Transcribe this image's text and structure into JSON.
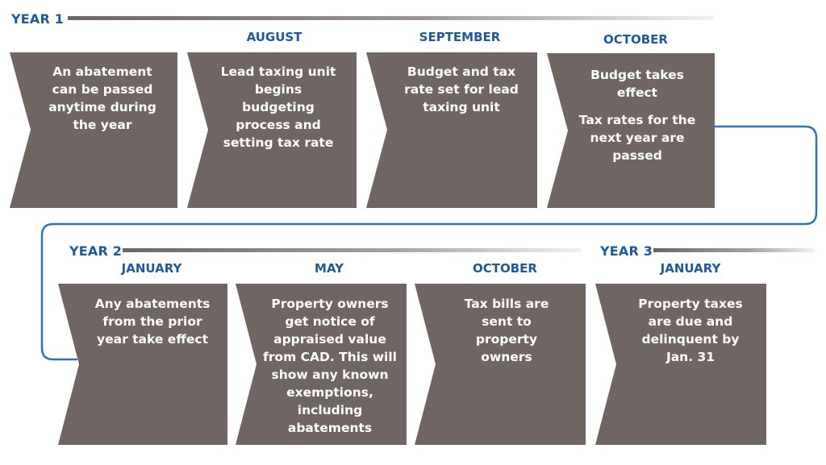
{
  "colors": {
    "blue": "#1f5a96",
    "box": "#6f6663",
    "connector": "#2f73b6",
    "line_dark": "#6f6663",
    "line_light": "#e4e2e1"
  },
  "years": {
    "year1": "YEAR 1",
    "year2": "YEAR 2",
    "year3": "YEAR 3"
  },
  "steps": [
    {
      "month": "",
      "text": [
        "An abatement can be passed anytime during the year"
      ]
    },
    {
      "month": "AUGUST",
      "text": [
        "Lead taxing unit begins budgeting process and setting tax rate"
      ]
    },
    {
      "month": "SEPTEMBER",
      "text": [
        "Budget and tax rate set for lead taxing unit"
      ]
    },
    {
      "month": "OCTOBER",
      "text": [
        "Budget takes effect",
        "Tax rates for the next year are passed"
      ]
    },
    {
      "month": "JANUARY",
      "text": [
        "Any abatements from the prior year take effect"
      ]
    },
    {
      "month": "MAY",
      "text": [
        "Property owners get notice of appraised value from CAD. This will show any known exemptions, including abatements"
      ]
    },
    {
      "month": "OCTOBER",
      "text": [
        "Tax bills are sent to property owners"
      ]
    },
    {
      "month": "JANUARY",
      "text": [
        "Property taxes are due and delinquent by Jan. 31"
      ]
    }
  ]
}
